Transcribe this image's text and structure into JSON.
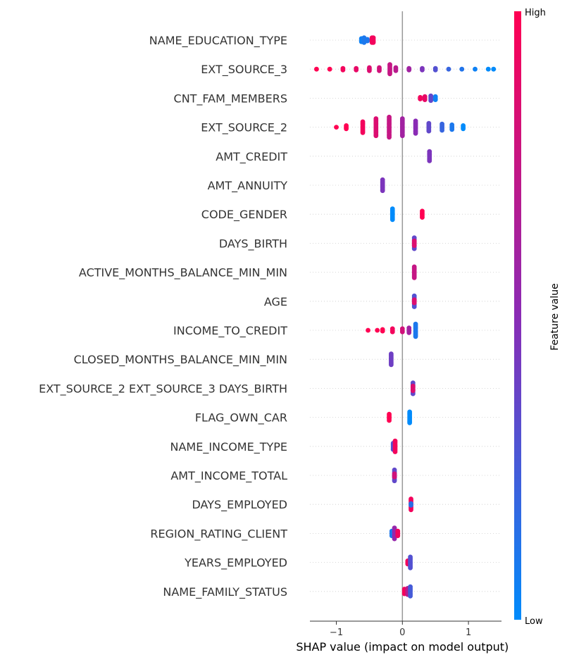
{
  "chart_data": {
    "type": "scatter",
    "subtype": "shap-beeswarm-summary",
    "xlabel": "SHAP value (impact on model output)",
    "xlim": [
      -1.4,
      1.5
    ],
    "xticks": [
      -1,
      0,
      1
    ],
    "xtick_labels": [
      "−1",
      "0",
      "1"
    ],
    "grid": false,
    "colorbar": {
      "label": "Feature value",
      "high_label": "High",
      "low_label": "Low",
      "high_color": "#ff0052",
      "low_color": "#008bfb"
    },
    "features": [
      {
        "name": "NAME_EDUCATION_TYPE",
        "points": [
          {
            "x": -0.62,
            "v": 0.05,
            "w": 3
          },
          {
            "x": -0.58,
            "v": 0.1,
            "w": 4
          },
          {
            "x": -0.53,
            "v": 0.1,
            "w": 2
          },
          {
            "x": -0.46,
            "v": 0.95,
            "w": 4
          },
          {
            "x": -0.44,
            "v": 0.95,
            "w": 4
          }
        ]
      },
      {
        "name": "EXT_SOURCE_3",
        "points": [
          {
            "x": -1.3,
            "v": 1.0,
            "w": 1
          },
          {
            "x": -1.1,
            "v": 1.0,
            "w": 1
          },
          {
            "x": -0.9,
            "v": 0.95,
            "w": 2
          },
          {
            "x": -0.7,
            "v": 0.9,
            "w": 2
          },
          {
            "x": -0.5,
            "v": 0.85,
            "w": 3
          },
          {
            "x": -0.35,
            "v": 0.8,
            "w": 3
          },
          {
            "x": -0.19,
            "v": 0.75,
            "w": 7
          },
          {
            "x": -0.1,
            "v": 0.7,
            "w": 3
          },
          {
            "x": 0.1,
            "v": 0.6,
            "w": 2
          },
          {
            "x": 0.3,
            "v": 0.45,
            "w": 2
          },
          {
            "x": 0.5,
            "v": 0.3,
            "w": 2
          },
          {
            "x": 0.7,
            "v": 0.2,
            "w": 1
          },
          {
            "x": 0.9,
            "v": 0.12,
            "w": 1
          },
          {
            "x": 1.1,
            "v": 0.05,
            "w": 1
          },
          {
            "x": 1.3,
            "v": 0.0,
            "w": 1
          },
          {
            "x": 1.38,
            "v": 0.0,
            "w": 1
          }
        ]
      },
      {
        "name": "CNT_FAM_MEMBERS",
        "points": [
          {
            "x": 0.27,
            "v": 0.95,
            "w": 2
          },
          {
            "x": 0.34,
            "v": 0.9,
            "w": 3
          },
          {
            "x": 0.43,
            "v": 0.35,
            "w": 4
          },
          {
            "x": 0.5,
            "v": 0.05,
            "w": 3
          }
        ]
      },
      {
        "name": "EXT_SOURCE_2",
        "points": [
          {
            "x": -1.0,
            "v": 1.0,
            "w": 1
          },
          {
            "x": -0.85,
            "v": 1.0,
            "w": 3
          },
          {
            "x": -0.6,
            "v": 0.95,
            "w": 8
          },
          {
            "x": -0.4,
            "v": 0.85,
            "w": 12
          },
          {
            "x": -0.2,
            "v": 0.75,
            "w": 14
          },
          {
            "x": 0.0,
            "v": 0.6,
            "w": 12
          },
          {
            "x": 0.2,
            "v": 0.5,
            "w": 9
          },
          {
            "x": 0.4,
            "v": 0.35,
            "w": 6
          },
          {
            "x": 0.6,
            "v": 0.2,
            "w": 5
          },
          {
            "x": 0.75,
            "v": 0.1,
            "w": 4
          },
          {
            "x": 0.92,
            "v": 0.0,
            "w": 3
          }
        ]
      },
      {
        "name": "AMT_CREDIT",
        "points": [
          {
            "x": 0.41,
            "v": 0.45,
            "w": 7
          }
        ]
      },
      {
        "name": "AMT_ANNUITY",
        "points": [
          {
            "x": -0.3,
            "v": 0.45,
            "w": 8
          }
        ]
      },
      {
        "name": "CODE_GENDER",
        "points": [
          {
            "x": -0.15,
            "v": 0.0,
            "w": 8
          },
          {
            "x": 0.3,
            "v": 1.0,
            "w": 5
          }
        ]
      },
      {
        "name": "DAYS_BIRTH",
        "points": [
          {
            "x": 0.18,
            "v": 0.35,
            "w": 8
          },
          {
            "x": 0.18,
            "v": 0.85,
            "w": 4
          }
        ]
      },
      {
        "name": "ACTIVE_MONTHS_BALANCE_MIN_MIN",
        "points": [
          {
            "x": 0.18,
            "v": 0.75,
            "w": 8
          }
        ]
      },
      {
        "name": "AGE",
        "points": [
          {
            "x": 0.18,
            "v": 0.3,
            "w": 8
          },
          {
            "x": 0.18,
            "v": 0.85,
            "w": 3
          }
        ]
      },
      {
        "name": "INCOME_TO_CREDIT",
        "points": [
          {
            "x": -0.52,
            "v": 1.0,
            "w": 1
          },
          {
            "x": -0.38,
            "v": 1.0,
            "w": 1
          },
          {
            "x": -0.3,
            "v": 1.0,
            "w": 2
          },
          {
            "x": -0.15,
            "v": 0.95,
            "w": 3
          },
          {
            "x": 0.0,
            "v": 0.8,
            "w": 3
          },
          {
            "x": 0.1,
            "v": 0.6,
            "w": 4
          },
          {
            "x": 0.2,
            "v": 0.1,
            "w": 9
          }
        ]
      },
      {
        "name": "CLOSED_MONTHS_BALANCE_MIN_MIN",
        "points": [
          {
            "x": -0.17,
            "v": 0.4,
            "w": 8
          }
        ]
      },
      {
        "name": "EXT_SOURCE_2 EXT_SOURCE_3 DAYS_BIRTH",
        "points": [
          {
            "x": 0.16,
            "v": 0.35,
            "w": 8
          },
          {
            "x": 0.16,
            "v": 0.85,
            "w": 4
          }
        ]
      },
      {
        "name": "FLAG_OWN_CAR",
        "points": [
          {
            "x": -0.2,
            "v": 1.0,
            "w": 5
          },
          {
            "x": 0.11,
            "v": 0.0,
            "w": 8
          }
        ]
      },
      {
        "name": "NAME_INCOME_TYPE",
        "points": [
          {
            "x": -0.14,
            "v": 0.3,
            "w": 5
          },
          {
            "x": -0.11,
            "v": 0.95,
            "w": 8
          }
        ]
      },
      {
        "name": "AMT_INCOME_TOTAL",
        "points": [
          {
            "x": -0.12,
            "v": 0.35,
            "w": 8
          },
          {
            "x": -0.12,
            "v": 0.8,
            "w": 3
          }
        ]
      },
      {
        "name": "DAYS_EMPLOYED",
        "points": [
          {
            "x": 0.13,
            "v": 0.95,
            "w": 8
          },
          {
            "x": 0.13,
            "v": 0.15,
            "w": 2
          }
        ]
      },
      {
        "name": "REGION_RATING_CLIENT",
        "points": [
          {
            "x": -0.16,
            "v": 0.1,
            "w": 4
          },
          {
            "x": -0.12,
            "v": 0.55,
            "w": 8
          },
          {
            "x": -0.07,
            "v": 0.95,
            "w": 4
          }
        ]
      },
      {
        "name": "YEARS_EMPLOYED",
        "points": [
          {
            "x": 0.08,
            "v": 0.95,
            "w": 3
          },
          {
            "x": 0.12,
            "v": 0.3,
            "w": 8
          }
        ]
      },
      {
        "name": "NAME_FAMILY_STATUS",
        "points": [
          {
            "x": 0.03,
            "v": 0.95,
            "w": 4
          },
          {
            "x": 0.08,
            "v": 0.7,
            "w": 5
          },
          {
            "x": 0.12,
            "v": 0.25,
            "w": 7
          }
        ]
      }
    ]
  }
}
